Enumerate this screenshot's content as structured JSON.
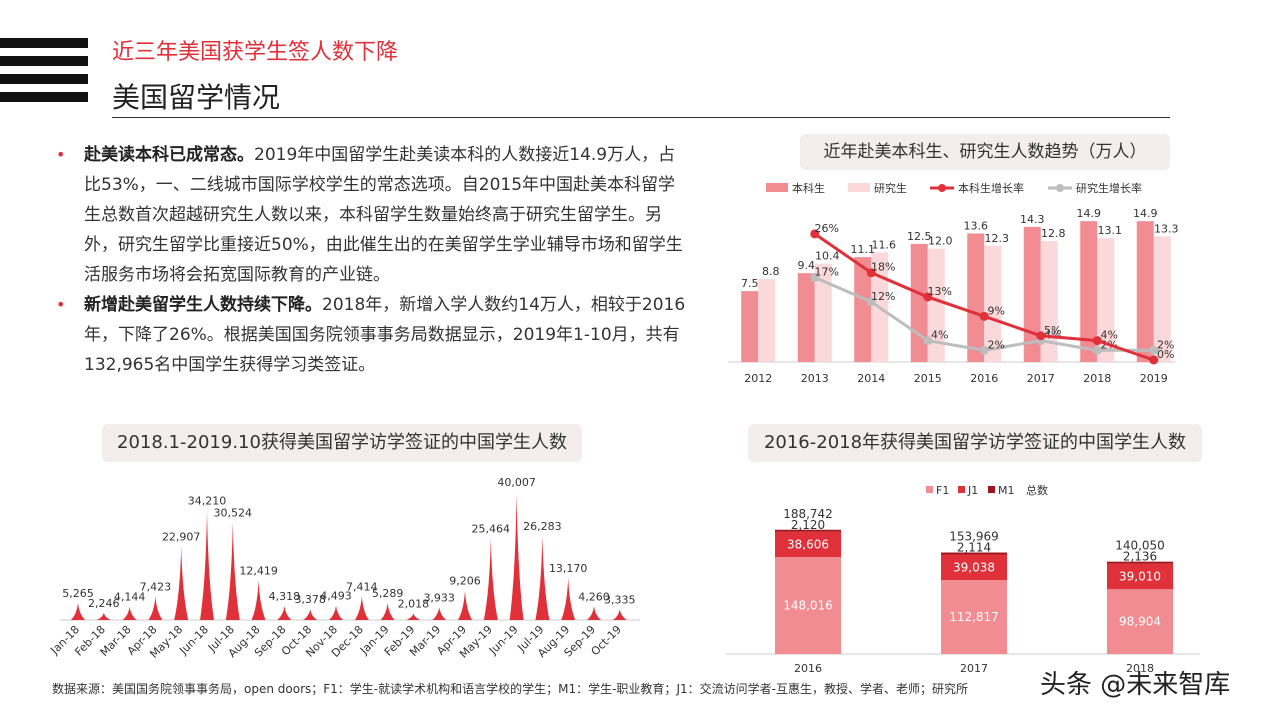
{
  "header": {
    "subtitle": "近三年美国获学生签人数下降",
    "title": "美国留学情况"
  },
  "bullets": [
    {
      "bold": "赴美读本科已成常态。",
      "text": "2019年中国留学生赴美读本科的人数接近14.9万人，占比53%，一、二线城市国际学校学生的常态选项。自2015年中国赴美本科留学生总数首次超越研究生人数以来，本科留学生数量始终高于研究生留学生。另外，研究生留学比重接近50%，由此催生出的在美留学生学业辅导市场和留学生活服务市场将会拓宽国际教育的产业链。"
    },
    {
      "bold": "新增赴美留学生人数持续下降。",
      "text": "2018年，新增入学人数约14万人，相较于2016年，下降了26%。根据美国国务院领事事务局数据显示，2019年1-10月，共有132,965名中国学生获得学习类签证。"
    }
  ],
  "chart_data": [
    {
      "type": "bar",
      "title": "近年赴美本科生、研究生人数趋势（万人）",
      "categories": [
        "2012",
        "2013",
        "2014",
        "2015",
        "2016",
        "2017",
        "2018",
        "2019"
      ],
      "series": [
        {
          "name": "本科生",
          "kind": "bar",
          "values": [
            7.5,
            9.4,
            11.1,
            12.5,
            13.6,
            14.3,
            14.9,
            14.9
          ],
          "labels": [
            "7.5",
            "9.4",
            "11.1",
            "12.5",
            "13.6",
            "14.3",
            "14.9",
            "14.9"
          ],
          "color": "#f08c92"
        },
        {
          "name": "研究生",
          "kind": "bar",
          "values": [
            8.8,
            10.4,
            11.6,
            12.0,
            12.3,
            12.8,
            13.1,
            13.3
          ],
          "labels": [
            "8.8",
            "10.4",
            "11.6",
            "12.0",
            "12.3",
            "12.8",
            "13.1",
            "13.3"
          ],
          "color": "#fbd9db"
        },
        {
          "name": "本科生增长率",
          "kind": "line",
          "values": [
            null,
            26,
            18,
            13,
            9,
            5,
            4,
            0
          ],
          "labels": [
            "",
            "26%",
            "18%",
            "13%",
            "9%",
            "5%",
            "4%",
            "0%"
          ],
          "color": "#e0303a"
        },
        {
          "name": "研究生增长率",
          "kind": "line",
          "values": [
            null,
            17,
            12,
            4,
            2,
            4,
            2,
            2
          ],
          "labels": [
            "",
            "17%",
            "12%",
            "4%",
            "2%",
            "4%",
            "2%",
            "2%"
          ],
          "color": "#bdbdbd"
        }
      ],
      "legend": "top"
    },
    {
      "type": "bar",
      "title": "2018.1-2019.10获得美国留学访学签证的中国学生人数",
      "categories": [
        "Jan-18",
        "Feb-18",
        "Mar-18",
        "Apr-18",
        "May-18",
        "Jun-18",
        "Jul-18",
        "Aug-18",
        "Sep-18",
        "Oct-18",
        "Nov-18",
        "Dec-18",
        "Jan-19",
        "Feb-19",
        "Mar-19",
        "Apr-19",
        "May-19",
        "Jun-19",
        "Jul-19",
        "Aug-19",
        "Sep-19",
        "Oct-19"
      ],
      "values": [
        5265,
        2246,
        4144,
        7423,
        22907,
        34210,
        30524,
        12419,
        4318,
        3378,
        4493,
        7414,
        5289,
        2018,
        3933,
        9206,
        25464,
        40007,
        26283,
        13170,
        4260,
        3335
      ],
      "labels": [
        "5,265",
        "2,246",
        "4,144",
        "7,423",
        "22,907",
        "34,210",
        "30,524",
        "12,419",
        "4,318",
        "3,378",
        "4,493",
        "7,414",
        "5,289",
        "2,018",
        "3,933",
        "9,206",
        "25,464",
        "40,007",
        "26,283",
        "13,170",
        "4,260",
        "3,335"
      ],
      "color": "#e0303a"
    },
    {
      "type": "bar",
      "stacked": true,
      "title": "2016-2018年获得美国留学访学签证的中国学生人数",
      "categories": [
        "2016",
        "2017",
        "2018"
      ],
      "series": [
        {
          "name": "F1",
          "values": [
            148016,
            112817,
            98904
          ],
          "labels": [
            "148,016",
            "112,817",
            "98,904"
          ],
          "color": "#f08c92"
        },
        {
          "name": "J1",
          "values": [
            38606,
            39038,
            39010
          ],
          "labels": [
            "38,606",
            "39,038",
            "39,010"
          ],
          "color": "#e0303a"
        },
        {
          "name": "M1",
          "values": [
            2120,
            2114,
            2136
          ],
          "labels": [
            "2,120",
            "2,114",
            "2,136"
          ],
          "color": "#a0141c"
        }
      ],
      "totals_name": "总数",
      "totals": [
        "188,742",
        "153,969",
        "140,050"
      ],
      "legend": "top"
    }
  ],
  "footer": {
    "source": "数据来源：美国国务院领事事务局，open doors；F1：学生-就读学术机构和语言学校的学生；M1：学生-职业教育；J1：交流访问学者-互惠生，教授、学者、老师；研究所",
    "watermark": "头条 @未来智库"
  }
}
